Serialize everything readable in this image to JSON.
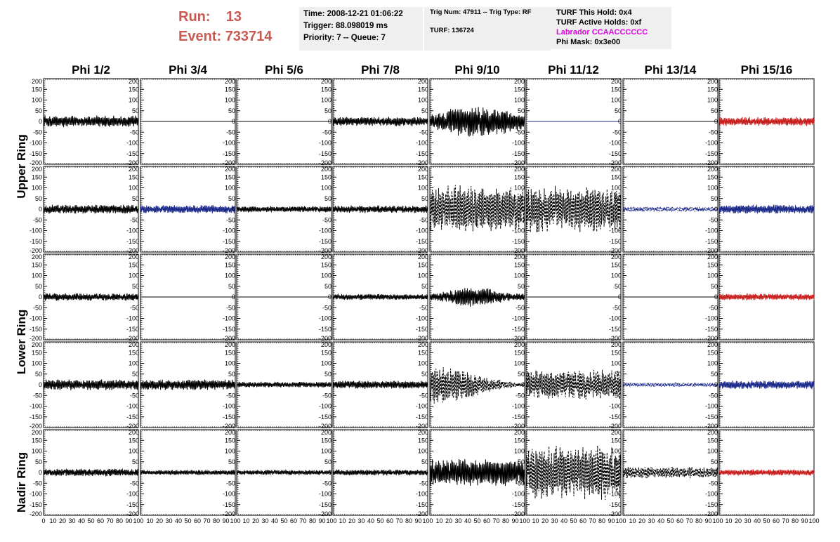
{
  "header": {
    "run_label": "Run:",
    "run_value": "13",
    "event_label": "Event:",
    "event_value": "733714",
    "time": "Time: 2008-12-21 01:06:22",
    "trigger": "Trigger: 88.098019 ms",
    "priority": "Priority: 7 -- Queue: 7",
    "trig_num": "Trig Num: 47911 -- Trig Type: RF",
    "turf": "TURF: 136724",
    "turf_this_hold": "TURF This Hold: 0x4",
    "turf_active_holds": "TURF Active Holds: 0xf",
    "labrador": "Labrador CCAACCCCCC",
    "phi_mask": "Phi Mask: 0x3e00"
  },
  "colors": {
    "header_red": "#c85a52",
    "magenta": "#e100e1",
    "trace_black": "#000000",
    "trace_blue": "#1c2a8a",
    "trace_red": "#c81e1e"
  },
  "chart_data": {
    "type": "line",
    "description_of_layout": "",
    "columns": [
      "Phi 1/2",
      "Phi 3/4",
      "Phi 5/6",
      "Phi 7/8",
      "Phi 9/10",
      "Phi 11/12",
      "Phi 13/14",
      "Phi 15/16"
    ],
    "ring_labels": [
      {
        "label": "Upper Ring"
      },
      {
        "label": "Lower Ring"
      },
      {
        "label": "Nadir Ring"
      }
    ],
    "ylim": [
      -200,
      200
    ],
    "yticks": [
      "200",
      "150",
      "100",
      "50",
      "0",
      "-50",
      "-100",
      "-150",
      "-200"
    ],
    "xlim": [
      0,
      100
    ],
    "xticks_first": [
      "0",
      "10",
      "20",
      "30",
      "40",
      "50",
      "60",
      "70",
      "80",
      "90",
      "100"
    ],
    "xticks": [
      "10",
      "20",
      "30",
      "40",
      "50",
      "60",
      "70",
      "80",
      "90",
      "100"
    ],
    "panels": [
      [
        {
          "color": "black",
          "style": "solid",
          "amp": 28,
          "env": "flat"
        },
        {
          "color": "black",
          "style": "solid",
          "amp": 0,
          "env": "flat"
        },
        {
          "color": "black",
          "style": "solid",
          "amp": 0,
          "env": "flat"
        },
        {
          "color": "black",
          "style": "solid",
          "amp": 22,
          "env": "flat"
        },
        {
          "color": "black",
          "style": "solid",
          "amp": 75,
          "env": "bulge"
        },
        {
          "color": "blue",
          "style": "solid",
          "amp": 0,
          "env": "flat"
        },
        {
          "color": "black",
          "style": "solid",
          "amp": 0,
          "env": "flat"
        },
        {
          "color": "red",
          "style": "solid",
          "amp": 22,
          "env": "flat"
        }
      ],
      [
        {
          "color": "black",
          "style": "solid",
          "amp": 22,
          "env": "flat"
        },
        {
          "color": "blue",
          "style": "solid",
          "amp": 20,
          "env": "flat"
        },
        {
          "color": "black",
          "style": "solid",
          "amp": 15,
          "env": "flat"
        },
        {
          "color": "black",
          "style": "solid",
          "amp": 18,
          "env": "flat"
        },
        {
          "color": "black",
          "style": "dashed",
          "amp": 115,
          "env": "flat"
        },
        {
          "color": "black",
          "style": "dashed",
          "amp": 110,
          "env": "flat"
        },
        {
          "color": "blue",
          "style": "dashed",
          "amp": 12,
          "env": "flat"
        },
        {
          "color": "blue",
          "style": "solid",
          "amp": 22,
          "env": "flat"
        }
      ],
      [
        {
          "color": "black",
          "style": "solid",
          "amp": 18,
          "env": "flat"
        },
        {
          "color": "black",
          "style": "solid",
          "amp": 0,
          "env": "flat"
        },
        {
          "color": "black",
          "style": "solid",
          "amp": 0,
          "env": "flat"
        },
        {
          "color": "black",
          "style": "solid",
          "amp": 14,
          "env": "flat"
        },
        {
          "color": "black",
          "style": "solid",
          "amp": 50,
          "env": "rise"
        },
        {
          "color": "black",
          "style": "solid",
          "amp": 0,
          "env": "flat"
        },
        {
          "color": "black",
          "style": "solid",
          "amp": 0,
          "env": "flat"
        },
        {
          "color": "red",
          "style": "solid",
          "amp": 16,
          "env": "flat"
        }
      ],
      [
        {
          "color": "black",
          "style": "solid",
          "amp": 26,
          "env": "flat"
        },
        {
          "color": "black",
          "style": "solid",
          "amp": 25,
          "env": "flat"
        },
        {
          "color": "black",
          "style": "solid",
          "amp": 14,
          "env": "flat"
        },
        {
          "color": "black",
          "style": "solid",
          "amp": 20,
          "env": "flat"
        },
        {
          "color": "black",
          "style": "dashed",
          "amp": 95,
          "env": "decay"
        },
        {
          "color": "black",
          "style": "dashed",
          "amp": 70,
          "env": "flat"
        },
        {
          "color": "blue",
          "style": "dashed",
          "amp": 10,
          "env": "flat"
        },
        {
          "color": "blue",
          "style": "solid",
          "amp": 20,
          "env": "flat"
        }
      ],
      [
        {
          "color": "black",
          "style": "solid",
          "amp": 18,
          "env": "flat"
        },
        {
          "color": "black",
          "style": "solid",
          "amp": 12,
          "env": "flat"
        },
        {
          "color": "black",
          "style": "solid",
          "amp": 12,
          "env": "flat"
        },
        {
          "color": "black",
          "style": "solid",
          "amp": 14,
          "env": "flat"
        },
        {
          "color": "black",
          "style": "solid",
          "amp": 65,
          "env": "flat"
        },
        {
          "color": "black",
          "style": "dashed",
          "amp": 130,
          "env": "flat"
        },
        {
          "color": "black",
          "style": "dashed",
          "amp": 28,
          "env": "flat"
        },
        {
          "color": "red",
          "style": "solid",
          "amp": 15,
          "env": "flat"
        }
      ]
    ]
  }
}
